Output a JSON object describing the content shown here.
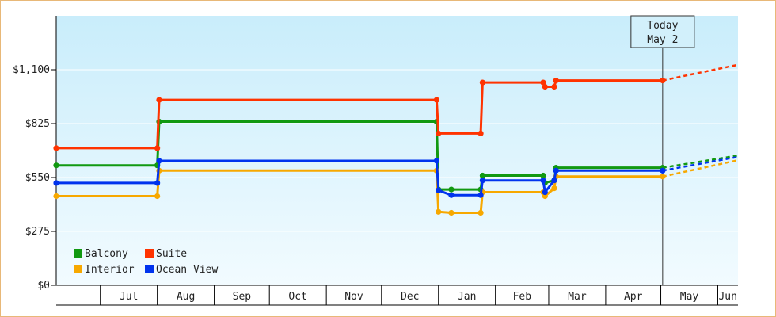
{
  "chart_data": {
    "type": "line",
    "step": true,
    "title": "",
    "xlabel": "",
    "ylabel": "",
    "ylim": [
      0,
      1375
    ],
    "yticks": [
      0,
      275,
      550,
      825,
      1100
    ],
    "ytick_labels": [
      "$0",
      "$275",
      "$550",
      "$825",
      "$1,100"
    ],
    "months": [
      "Jul",
      "Aug",
      "Sep",
      "Oct",
      "Nov",
      "Dec",
      "Jan",
      "Feb",
      "Mar",
      "Apr",
      "May",
      "Jun"
    ],
    "x_start": "2011-06-07",
    "x_end": "2012-06-12",
    "month_starts": [
      "2011-07-01",
      "2011-08-01",
      "2011-09-01",
      "2011-10-01",
      "2011-11-01",
      "2011-12-01",
      "2012-01-01",
      "2012-02-01",
      "2012-03-01",
      "2012-04-01",
      "2012-05-01",
      "2012-06-01"
    ],
    "today": {
      "line1": "Today",
      "line2": "May 2",
      "date": "2012-05-02"
    },
    "legend_position": "bottom-left",
    "series": [
      {
        "name": "Balcony",
        "color": "#119911",
        "points": [
          [
            "2011-06-07",
            612
          ],
          [
            "2011-08-01",
            612
          ],
          [
            "2011-08-02",
            835
          ],
          [
            "2011-12-31",
            835
          ],
          [
            "2012-01-01",
            489
          ],
          [
            "2012-01-08",
            489
          ],
          [
            "2012-01-24",
            489
          ],
          [
            "2012-01-25",
            560
          ],
          [
            "2012-02-27",
            560
          ],
          [
            "2012-02-28",
            523
          ],
          [
            "2012-03-04",
            535
          ],
          [
            "2012-03-05",
            600
          ],
          [
            "2012-05-02",
            600
          ]
        ],
        "forecast": [
          [
            "2012-05-02",
            600
          ],
          [
            "2012-06-12",
            662
          ]
        ]
      },
      {
        "name": "Suite",
        "color": "#ff3300",
        "points": [
          [
            "2011-06-07",
            700
          ],
          [
            "2011-08-01",
            700
          ],
          [
            "2011-08-02",
            946
          ],
          [
            "2011-12-31",
            946
          ],
          [
            "2012-01-01",
            775
          ],
          [
            "2012-01-24",
            775
          ],
          [
            "2012-01-25",
            1035
          ],
          [
            "2012-02-27",
            1035
          ],
          [
            "2012-02-28",
            1013
          ],
          [
            "2012-03-04",
            1013
          ],
          [
            "2012-03-05",
            1045
          ],
          [
            "2012-05-02",
            1045
          ]
        ],
        "forecast": [
          [
            "2012-05-02",
            1045
          ],
          [
            "2012-05-17",
            1075
          ],
          [
            "2012-06-12",
            1125
          ]
        ]
      },
      {
        "name": "Interior",
        "color": "#f7a800",
        "points": [
          [
            "2011-06-07",
            455
          ],
          [
            "2011-08-01",
            455
          ],
          [
            "2011-08-02",
            585
          ],
          [
            "2011-12-31",
            585
          ],
          [
            "2012-01-01",
            375
          ],
          [
            "2012-01-08",
            370
          ],
          [
            "2012-01-24",
            370
          ],
          [
            "2012-01-25",
            475
          ],
          [
            "2012-02-27",
            475
          ],
          [
            "2012-02-28",
            455
          ],
          [
            "2012-03-04",
            495
          ],
          [
            "2012-03-05",
            555
          ],
          [
            "2012-05-02",
            555
          ]
        ],
        "forecast": [
          [
            "2012-05-02",
            555
          ],
          [
            "2012-06-12",
            638
          ]
        ]
      },
      {
        "name": "Ocean View",
        "color": "#0033ee",
        "points": [
          [
            "2011-06-07",
            522
          ],
          [
            "2011-08-01",
            522
          ],
          [
            "2011-08-02",
            635
          ],
          [
            "2011-12-31",
            635
          ],
          [
            "2012-01-01",
            485
          ],
          [
            "2012-01-08",
            460
          ],
          [
            "2012-01-24",
            460
          ],
          [
            "2012-01-25",
            535
          ],
          [
            "2012-02-27",
            535
          ],
          [
            "2012-02-28",
            475
          ],
          [
            "2012-03-04",
            535
          ],
          [
            "2012-03-05",
            585
          ],
          [
            "2012-05-02",
            585
          ]
        ],
        "forecast": [
          [
            "2012-05-02",
            585
          ],
          [
            "2012-06-12",
            655
          ]
        ]
      }
    ],
    "legend": [
      {
        "name": "Balcony",
        "color": "#119911"
      },
      {
        "name": "Suite",
        "color": "#ff3300"
      },
      {
        "name": "Interior",
        "color": "#f7a800"
      },
      {
        "name": "Ocean View",
        "color": "#0033ee"
      }
    ]
  }
}
